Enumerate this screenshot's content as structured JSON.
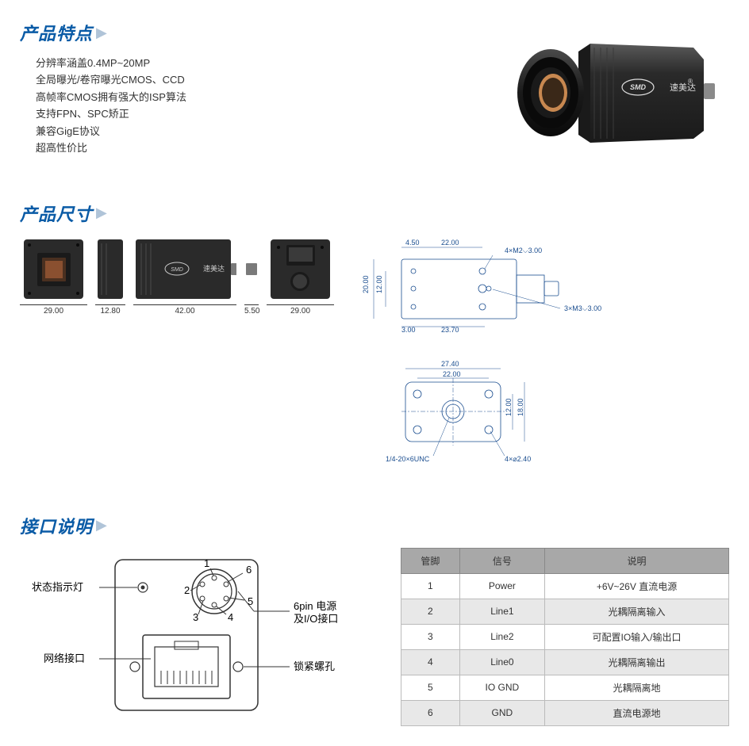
{
  "brand_text": "速美达",
  "brand_logo_text": "SMD",
  "sections": {
    "features": {
      "title": "产品特点",
      "items": [
        "分辨率涵盖0.4MP~20MP",
        "全局曝光/卷帘曝光CMOS、CCD",
        "高帧率CMOS拥有强大的ISP算法",
        "支持FPN、SPC矫正",
        "兼容GigE协议",
        "超高性价比"
      ]
    },
    "dimensions": {
      "title": "产品尺寸",
      "views": {
        "front": {
          "width": "29.00"
        },
        "side_back": {
          "width": "12.80"
        },
        "side": {
          "width": "42.00"
        },
        "connector": {
          "width": "5.50"
        },
        "rear": {
          "width": "29.00"
        }
      },
      "drawing_top": {
        "d1": "4.50",
        "d2": "22.00",
        "d3": "4×M2⌵3.00",
        "d4": "20.00",
        "d5": "12.00",
        "d6": "3×M3⌵3.00",
        "d7": "3.00",
        "d8": "23.70"
      },
      "drawing_bottom": {
        "d1": "27.40",
        "d2": "22.00",
        "d3": "12.00",
        "d4": "18.00",
        "d5": "1/4-20×6UNC",
        "d6": "4×⌀2.40"
      }
    },
    "interface": {
      "title": "接口说明",
      "labels": {
        "status_led": "状态指示灯",
        "network": "网络接口",
        "power_io": "6pin 电源\n及I/O接口",
        "lock": "锁紧螺孔",
        "p1": "1",
        "p2": "2",
        "p3": "3",
        "p4": "4",
        "p5": "5",
        "p6": "6"
      },
      "table": {
        "headers": [
          "管脚",
          "信号",
          "说明"
        ],
        "rows": [
          [
            "1",
            "Power",
            "+6V~26V 直流电源"
          ],
          [
            "2",
            "Line1",
            "光耦隔离输入"
          ],
          [
            "3",
            "Line2",
            "可配置IO输入/输出口"
          ],
          [
            "4",
            "Line0",
            "光耦隔离输出"
          ],
          [
            "5",
            "IO GND",
            "光耦隔离地"
          ],
          [
            "6",
            "GND",
            "直流电源地"
          ]
        ]
      }
    }
  },
  "colors": {
    "heading": "#0a5ba6",
    "arrow": "#b0c4d8",
    "text": "#333333",
    "camera_body": "#2a2a2a",
    "camera_highlight": "#4a4a4a",
    "table_header_bg": "#a8a8a8",
    "table_alt_bg": "#e8e8e8",
    "drawing_stroke": "#1a4d8f"
  }
}
